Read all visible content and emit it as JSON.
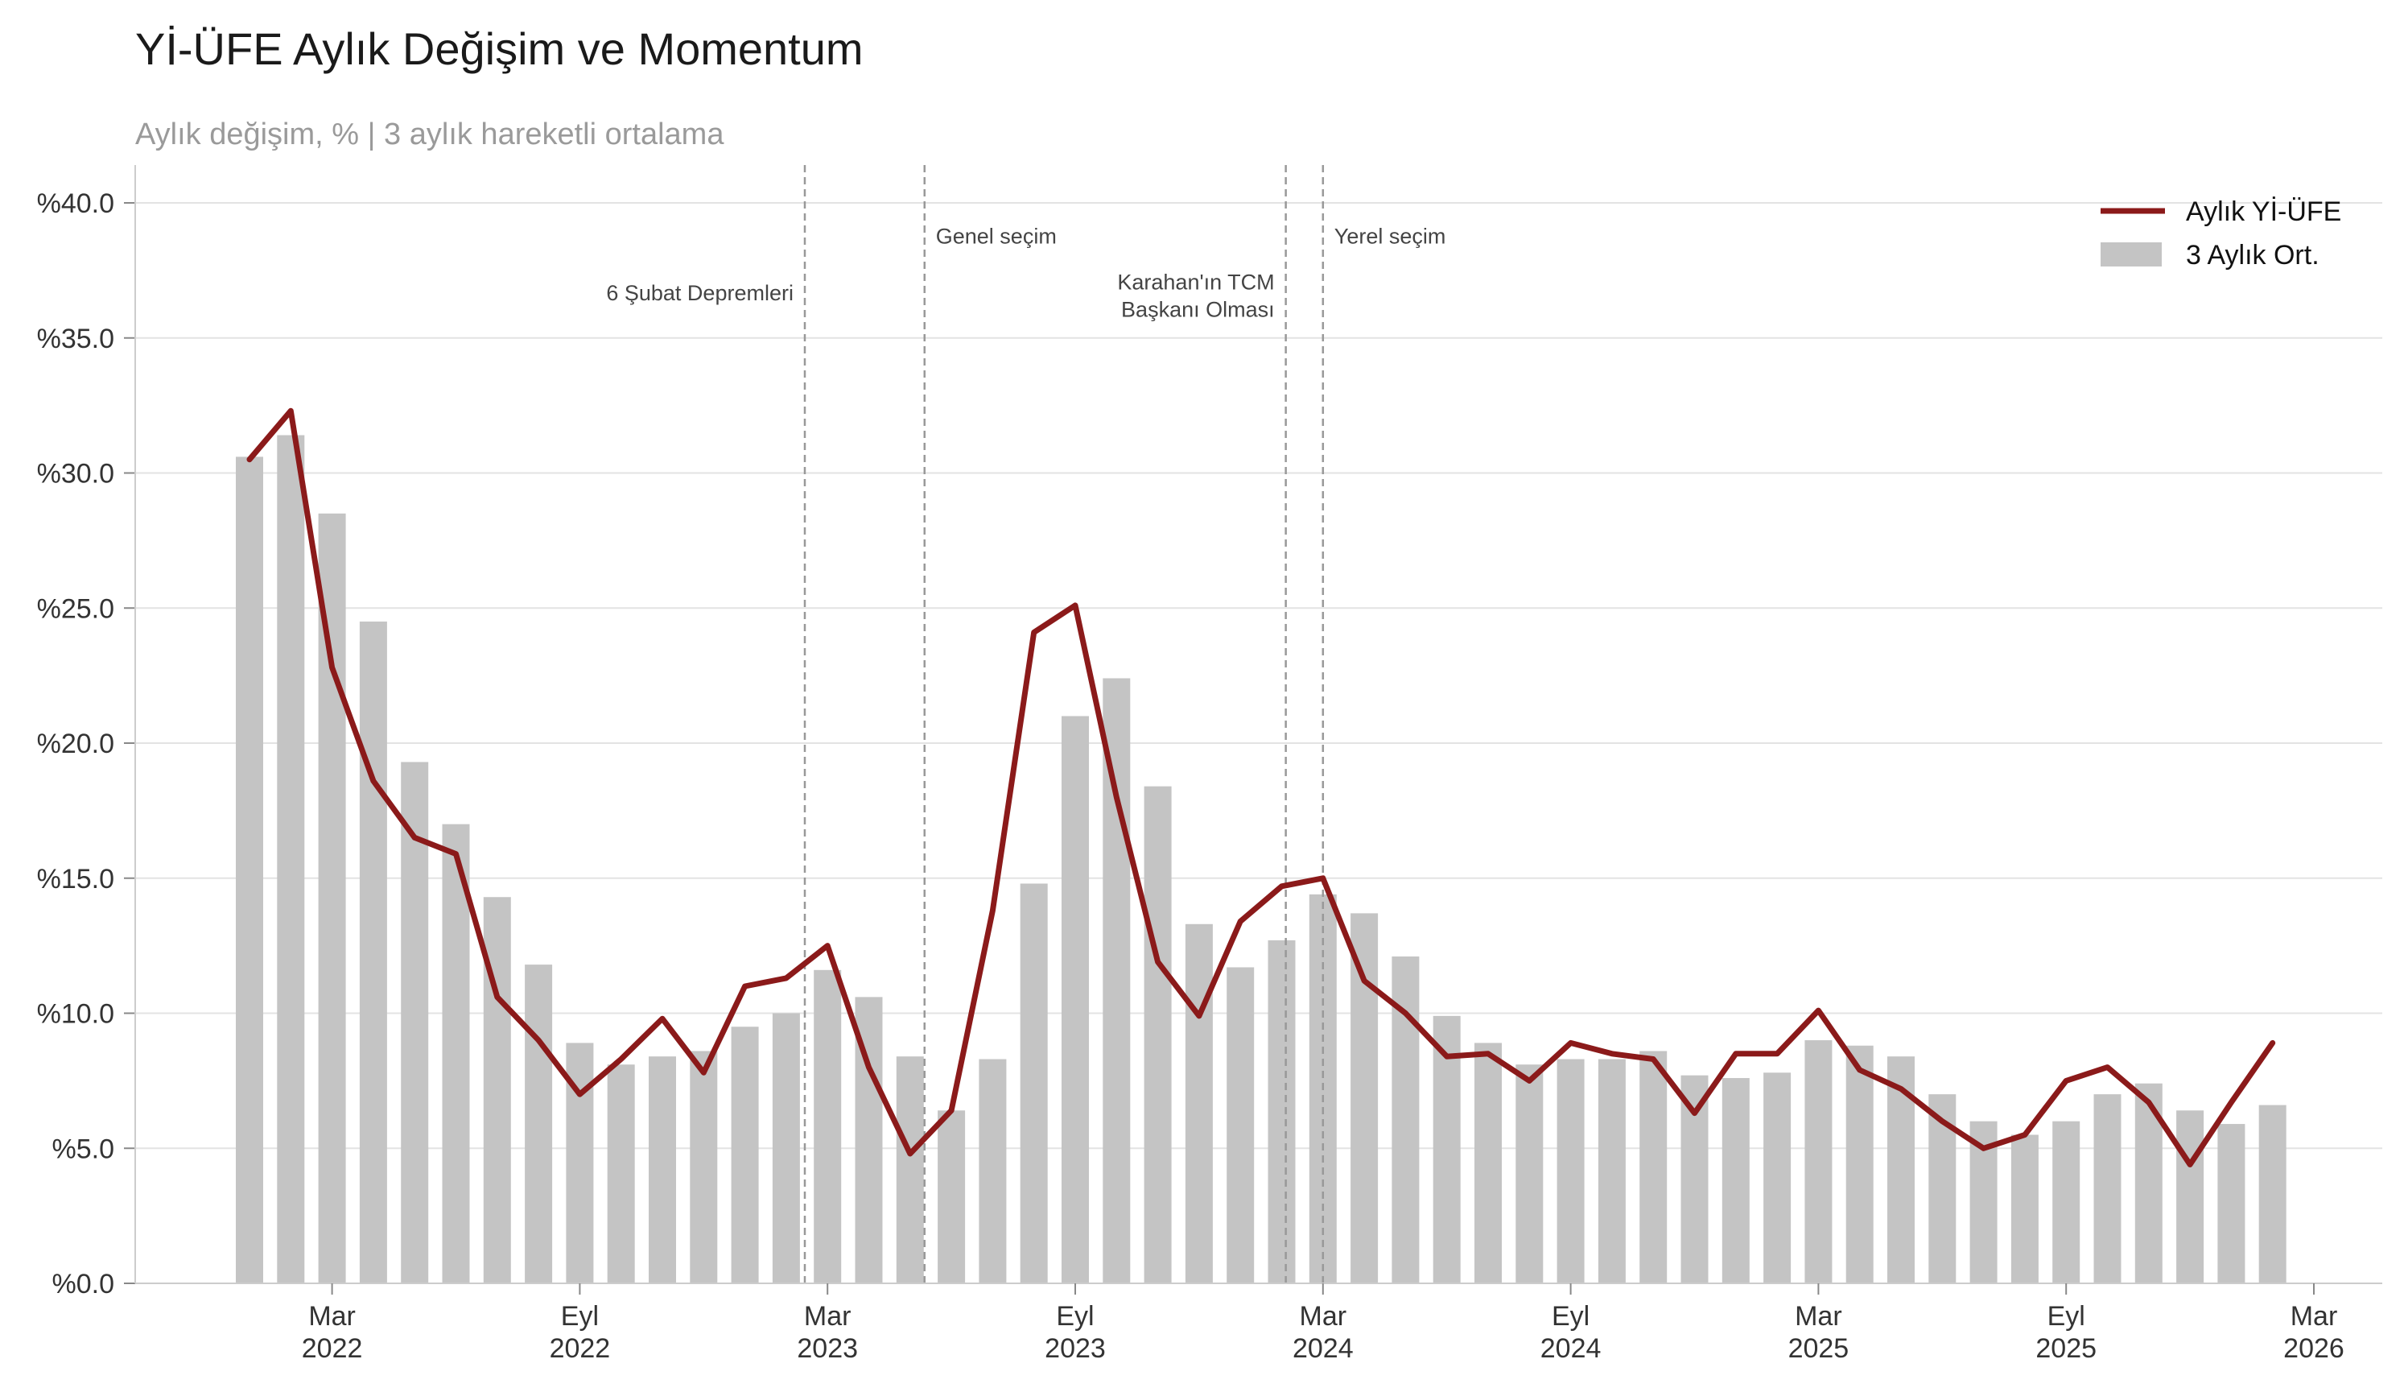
{
  "title": "Yİ-ÜFE Aylık Değişim ve Momentum",
  "subtitle": "Aylık değişim, %  |  3 aylık hareketli ortalama",
  "colors": {
    "line": "#8b1a1a",
    "bars": "#c4c4c4",
    "grid": "#e3e3e3",
    "event_line": "#999999",
    "axis": "#cccccc"
  },
  "chart_data": {
    "type": "bar",
    "title": "Yİ-ÜFE Aylık Değişim ve Momentum",
    "xlabel": "",
    "ylabel": "",
    "ylim": [
      0,
      40
    ],
    "grid": true,
    "legend_position": "top-right",
    "y_ticks": [
      {
        "value": 0,
        "label": "%0.0"
      },
      {
        "value": 5,
        "label": "%5.0"
      },
      {
        "value": 10,
        "label": "%10.0"
      },
      {
        "value": 15,
        "label": "%15.0"
      },
      {
        "value": 20,
        "label": "%20.0"
      },
      {
        "value": 25,
        "label": "%25.0"
      },
      {
        "value": 30,
        "label": "%30.0"
      },
      {
        "value": 35,
        "label": "%35.0"
      },
      {
        "value": 40,
        "label": "%40.0"
      }
    ],
    "x_ticks": [
      {
        "index": 2,
        "month": "Mar",
        "year": "2022"
      },
      {
        "index": 8,
        "month": "Eyl",
        "year": "2022"
      },
      {
        "index": 14,
        "month": "Mar",
        "year": "2023"
      },
      {
        "index": 20,
        "month": "Eyl",
        "year": "2023"
      },
      {
        "index": 26,
        "month": "Mar",
        "year": "2024"
      },
      {
        "index": 32,
        "month": "Eyl",
        "year": "2024"
      },
      {
        "index": 38,
        "month": "Mar",
        "year": "2025"
      },
      {
        "index": 44,
        "month": "Eyl",
        "year": "2025"
      },
      {
        "index": 50,
        "month": "Mar",
        "year": "2026"
      }
    ],
    "categories": [
      "2022-01",
      "2022-02",
      "2022-03",
      "2022-04",
      "2022-05",
      "2022-06",
      "2022-07",
      "2022-08",
      "2022-09",
      "2022-10",
      "2022-11",
      "2022-12",
      "2023-01",
      "2023-02",
      "2023-03",
      "2023-04",
      "2023-05",
      "2023-06",
      "2023-07",
      "2023-08",
      "2023-09",
      "2023-10",
      "2023-11",
      "2023-12",
      "2024-01",
      "2024-02",
      "2024-03",
      "2024-04",
      "2024-05",
      "2024-06",
      "2024-07",
      "2024-08",
      "2024-09",
      "2024-10",
      "2024-11",
      "2024-12",
      "2025-01",
      "2025-02",
      "2025-03",
      "2025-04",
      "2025-05",
      "2025-06",
      "2025-07",
      "2025-08",
      "2025-09",
      "2025-10",
      "2025-11",
      "2025-12",
      "2026-01",
      "2026-02"
    ],
    "series": [
      {
        "name": "Aylık Yİ-ÜFE",
        "kind": "line",
        "values": [
          30.5,
          32.3,
          22.8,
          18.6,
          16.5,
          15.9,
          10.6,
          9.0,
          7.0,
          8.3,
          9.8,
          7.8,
          11.0,
          11.3,
          12.5,
          8.0,
          4.8,
          6.4,
          13.8,
          24.1,
          25.1,
          18.0,
          11.9,
          9.9,
          13.4,
          14.7,
          15.0,
          11.2,
          10.0,
          8.4,
          8.5,
          7.5,
          8.9,
          8.5,
          8.3,
          6.3,
          8.5,
          8.5,
          10.1,
          7.9,
          7.2,
          6.0,
          5.0,
          5.5,
          7.5,
          8.0,
          6.7,
          4.4,
          6.7,
          8.9
        ]
      },
      {
        "name": "3 Aylık Ort.",
        "kind": "bar",
        "values": [
          30.6,
          31.4,
          28.5,
          24.5,
          19.3,
          17.0,
          14.3,
          11.8,
          8.9,
          8.1,
          8.4,
          8.6,
          9.5,
          10.0,
          11.6,
          10.6,
          8.4,
          6.4,
          8.3,
          14.8,
          21.0,
          22.4,
          18.4,
          13.3,
          11.7,
          12.7,
          14.4,
          13.7,
          12.1,
          9.9,
          8.9,
          8.1,
          8.3,
          8.3,
          8.6,
          7.7,
          7.6,
          7.8,
          9.0,
          8.8,
          8.4,
          7.0,
          6.0,
          5.5,
          6.0,
          7.0,
          7.4,
          6.4,
          5.9,
          6.6
        ]
      }
    ],
    "annotations": [
      {
        "index": 13.45,
        "lines": [
          "6 Şubat Depremleri"
        ],
        "side": "left",
        "label_value": 36.4
      },
      {
        "index": 16.35,
        "lines": [
          "Genel seçim"
        ],
        "side": "right",
        "label_value": 38.5
      },
      {
        "index": 25.1,
        "lines": [
          "Karahan'ın TCM",
          "Başkanı Olması"
        ],
        "side": "left",
        "label_value": 36.8
      },
      {
        "index": 26.0,
        "lines": [
          "Yerel seçim"
        ],
        "side": "right",
        "label_value": 38.5
      }
    ]
  }
}
